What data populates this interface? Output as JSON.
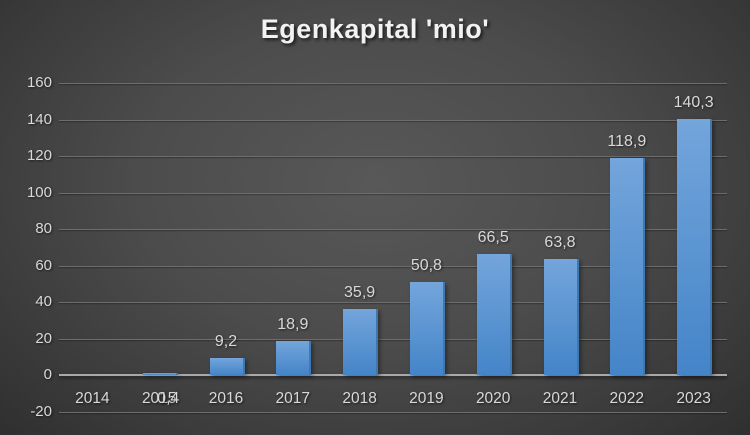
{
  "chart_data": {
    "type": "bar",
    "title": "Egenkapital 'mio'",
    "categories": [
      "2014",
      "2015",
      "2016",
      "2017",
      "2018",
      "2019",
      "2020",
      "2021",
      "2022",
      "2023"
    ],
    "values": [
      null,
      0.4,
      9.2,
      18.9,
      35.9,
      50.8,
      66.5,
      63.8,
      118.9,
      140.3
    ],
    "data_labels": [
      "",
      "0,4",
      "9,2",
      "18,9",
      "35,9",
      "50,8",
      "66,5",
      "63,8",
      "118,9",
      "140,3"
    ],
    "label_below_axis": [
      false,
      true,
      false,
      false,
      false,
      false,
      false,
      false,
      false,
      false
    ],
    "xlabel": "",
    "ylabel": "",
    "ylim": [
      -20,
      160
    ],
    "y_ticks": [
      160,
      140,
      120,
      100,
      80,
      60,
      40,
      20,
      0,
      -20
    ],
    "grid": true,
    "legend": false,
    "decimal_separator": ",",
    "bar_color_top": "#74a5db",
    "bar_color_bottom": "#4484c8",
    "background_center": "#585858",
    "background_corner": "#262626",
    "gridline_color": "#6d6d6d",
    "axis_line_color": "#a9a9a9",
    "text_color": "#d9d9d9",
    "title_color": "#f2f2f2"
  }
}
